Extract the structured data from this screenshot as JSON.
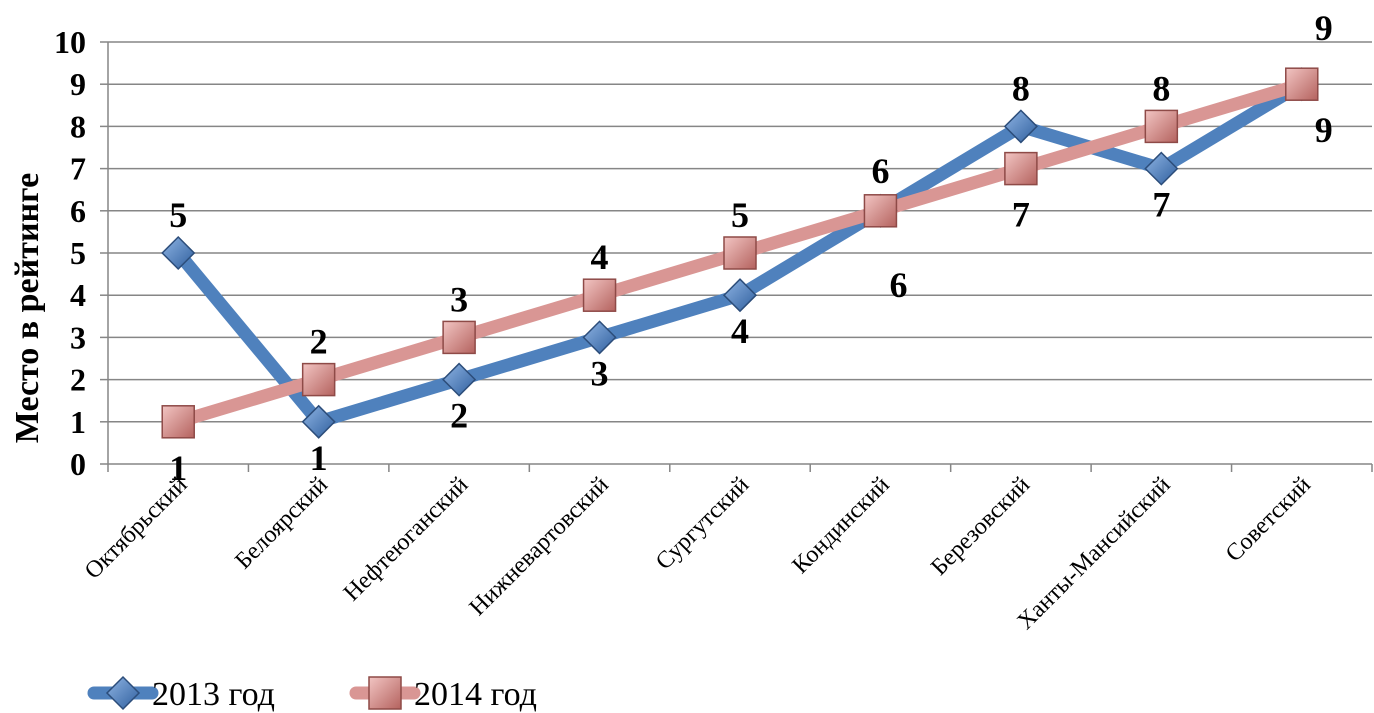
{
  "chart_data": {
    "type": "line",
    "title": "",
    "xlabel": "",
    "ylabel": "Место в рейтинге",
    "ylim": [
      0,
      10
    ],
    "yticks": [
      "0",
      "1",
      "2",
      "3",
      "4",
      "5",
      "6",
      "7",
      "8",
      "9",
      "10"
    ],
    "grid": true,
    "legend_position": "bottom-left",
    "categories": [
      "Октябрьский",
      "Белоярский",
      "Нефтеюганский",
      "Нижневартовский",
      "Сургутский",
      "Кондинский",
      "Березовский",
      "Ханты-Мансийский",
      "Советский"
    ],
    "series": [
      {
        "name": "2013 год",
        "values": [
          5,
          1,
          2,
          3,
          4,
          6,
          8,
          7,
          9
        ],
        "color": "#4f81bd",
        "marker": "diamond"
      },
      {
        "name": "2014 год",
        "values": [
          1,
          2,
          3,
          4,
          5,
          6,
          7,
          8,
          9
        ],
        "color": "#d99694",
        "marker": "square"
      }
    ]
  }
}
